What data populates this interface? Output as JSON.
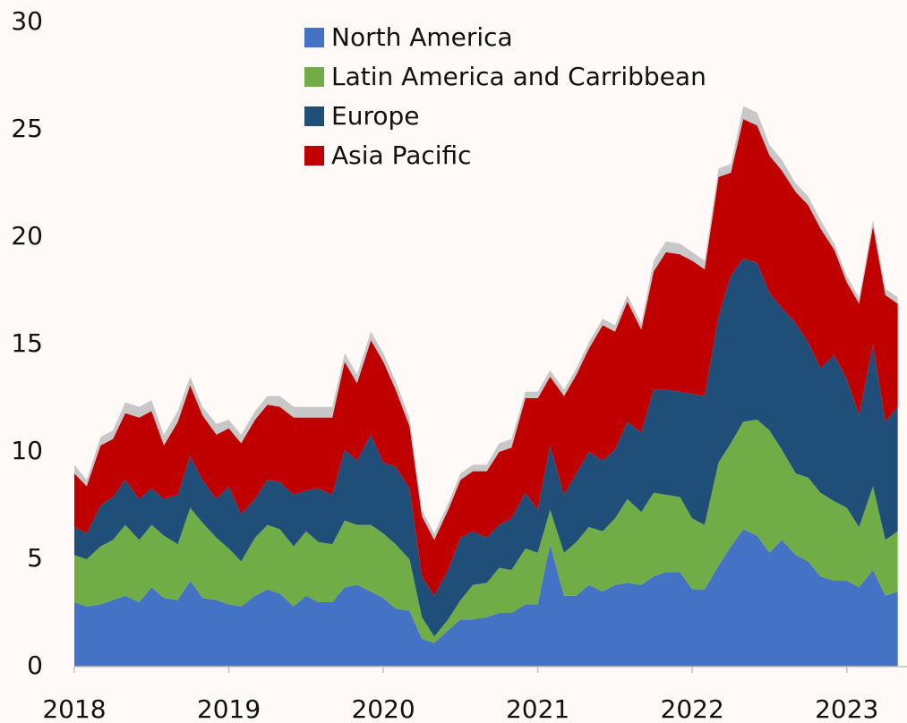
{
  "chart_data": {
    "type": "stacked_area",
    "x": [
      2018,
      2018.08,
      2018.17,
      2018.25,
      2018.33,
      2018.42,
      2018.5,
      2018.58,
      2018.67,
      2018.75,
      2018.83,
      2018.92,
      2019,
      2019.08,
      2019.17,
      2019.25,
      2019.33,
      2019.42,
      2019.5,
      2019.58,
      2019.67,
      2019.75,
      2019.83,
      2019.92,
      2020,
      2020.08,
      2020.17,
      2020.25,
      2020.33,
      2020.42,
      2020.5,
      2020.58,
      2020.67,
      2020.75,
      2020.83,
      2020.92,
      2021,
      2021.08,
      2021.17,
      2021.25,
      2021.33,
      2021.42,
      2021.5,
      2021.58,
      2021.67,
      2021.75,
      2021.83,
      2021.92,
      2022,
      2022.08,
      2022.17,
      2022.25,
      2022.33,
      2022.42,
      2022.5,
      2022.58,
      2022.67,
      2022.75,
      2022.83,
      2022.92,
      2023,
      2023.08,
      2023.17,
      2023.25,
      2023.33
    ],
    "series": [
      {
        "name": "North America",
        "color": "#4472c4",
        "values": [
          3.0,
          2.8,
          2.9,
          3.1,
          3.3,
          3.0,
          3.7,
          3.2,
          3.1,
          4.0,
          3.2,
          3.1,
          2.9,
          2.8,
          3.3,
          3.6,
          3.4,
          2.8,
          3.3,
          3.0,
          3.0,
          3.7,
          3.8,
          3.5,
          3.2,
          2.7,
          2.6,
          1.3,
          1.1,
          1.7,
          2.2,
          2.2,
          2.3,
          2.5,
          2.5,
          2.9,
          2.9,
          5.7,
          3.3,
          3.3,
          3.8,
          3.5,
          3.8,
          3.9,
          3.8,
          4.2,
          4.4,
          4.4,
          3.6,
          3.6,
          4.7,
          5.6,
          6.4,
          6.1,
          5.3,
          5.9,
          5.2,
          4.9,
          4.2,
          4.0,
          4.0,
          3.7,
          4.5,
          3.3,
          3.5
        ]
      },
      {
        "name": "Latin America and Carribbean",
        "color": "#70ad47",
        "values": [
          2.2,
          2.2,
          2.7,
          2.8,
          3.3,
          2.9,
          2.9,
          2.9,
          2.6,
          3.4,
          3.5,
          2.9,
          2.6,
          2.1,
          2.7,
          3.0,
          3.0,
          2.8,
          3.0,
          2.8,
          2.7,
          3.1,
          2.8,
          3.1,
          3.0,
          3.0,
          2.4,
          1.0,
          0.3,
          0.5,
          0.9,
          1.6,
          1.6,
          2.1,
          2.0,
          2.6,
          2.4,
          1.6,
          2.0,
          2.5,
          2.7,
          2.8,
          3.1,
          3.9,
          3.4,
          3.9,
          3.6,
          3.5,
          3.3,
          3.0,
          4.8,
          4.8,
          5.0,
          5.4,
          5.7,
          4.2,
          3.8,
          3.9,
          3.9,
          3.7,
          3.4,
          2.8,
          3.9,
          2.6,
          2.8
        ]
      },
      {
        "name": "Europe",
        "color": "#1f4e78",
        "values": [
          1.3,
          1.2,
          1.9,
          2.0,
          2.1,
          1.9,
          1.7,
          1.7,
          2.3,
          2.4,
          2.0,
          1.8,
          2.9,
          2.2,
          1.8,
          2.1,
          2.2,
          2.4,
          1.9,
          2.5,
          2.3,
          3.3,
          3.0,
          4.2,
          3.3,
          3.6,
          3.3,
          1.9,
          1.9,
          2.3,
          2.9,
          2.5,
          2.1,
          2.0,
          2.4,
          2.6,
          2.0,
          3.0,
          2.7,
          3.2,
          3.5,
          3.3,
          3.2,
          3.6,
          3.7,
          4.8,
          4.9,
          4.9,
          5.8,
          6.0,
          6.8,
          7.8,
          7.6,
          7.3,
          6.4,
          6.6,
          7.0,
          6.3,
          5.8,
          6.8,
          6.0,
          5.2,
          6.6,
          5.5,
          5.8
        ]
      },
      {
        "name": "Asia Pacific",
        "color": "#c00000",
        "values": [
          2.5,
          2.2,
          2.8,
          2.7,
          3.1,
          3.8,
          3.6,
          2.5,
          3.4,
          3.3,
          3.0,
          3.0,
          2.7,
          3.3,
          3.7,
          3.5,
          3.5,
          3.6,
          3.4,
          3.3,
          3.6,
          4.1,
          3.6,
          4.4,
          4.7,
          3.6,
          2.9,
          2.8,
          2.6,
          2.8,
          2.7,
          2.8,
          3.1,
          3.4,
          3.3,
          4.4,
          5.2,
          3.2,
          4.6,
          4.6,
          4.8,
          6.3,
          5.5,
          5.6,
          4.8,
          5.5,
          6.4,
          6.4,
          6.2,
          5.9,
          6.5,
          4.8,
          6.5,
          6.4,
          6.4,
          6.4,
          6.1,
          6.4,
          6.5,
          4.9,
          4.5,
          5.2,
          5.5,
          5.9,
          4.8
        ]
      },
      {
        "color": "#c8c8c8",
        "values": [
          0.4,
          0.3,
          0.4,
          0.4,
          0.5,
          0.5,
          0.5,
          0.5,
          0.5,
          0.4,
          0.4,
          0.5,
          0.4,
          0.4,
          0.4,
          0.4,
          0.5,
          0.5,
          0.5,
          0.5,
          0.5,
          0.4,
          0.4,
          0.4,
          0.4,
          0.4,
          0.4,
          0.3,
          0.3,
          0.3,
          0.3,
          0.3,
          0.3,
          0.4,
          0.4,
          0.3,
          0.3,
          0.3,
          0.3,
          0.3,
          0.3,
          0.3,
          0.3,
          0.3,
          0.3,
          0.5,
          0.5,
          0.5,
          0.4,
          0.4,
          0.4,
          0.4,
          0.6,
          0.6,
          0.5,
          0.5,
          0.4,
          0.4,
          0.4,
          0.3,
          0.3,
          0.3,
          0.3,
          0.3,
          0.3
        ]
      }
    ],
    "xlim": [
      2018,
      2023.39
    ],
    "xticks": [
      2018,
      2019,
      2020,
      2021,
      2022,
      2023
    ],
    "ylim": [
      0,
      30
    ],
    "yticks": [
      0,
      5,
      10,
      15,
      20,
      25,
      30
    ],
    "grid": false,
    "legend": "top"
  }
}
